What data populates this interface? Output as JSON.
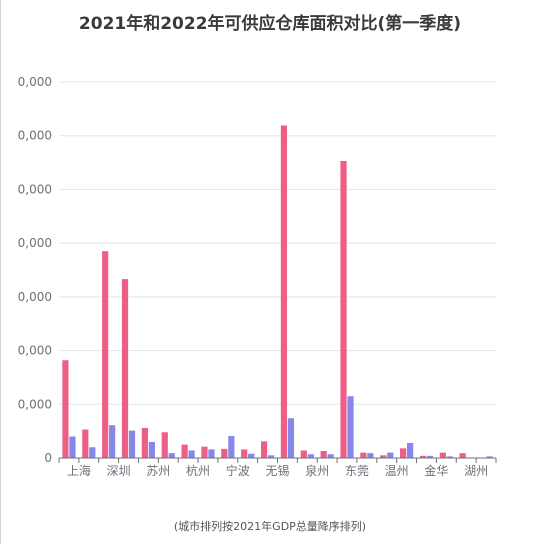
{
  "title": "2021年和2022年可供应仓库面积对比(第一季度)",
  "footnote": "(城市排列按2021年GDP总量降序排列)",
  "colors": {
    "series_2021": "#ec6088",
    "series_2022": "#8687ea",
    "grid": "#e0e6f1",
    "axis": "#6e7079"
  },
  "chart_data": {
    "type": "bar",
    "title": "2021年和2022年可供应仓库面积对比(第一季度)",
    "xlabel": "",
    "ylabel": "",
    "ylim": [
      0,
      70
    ],
    "yticks": [
      0,
      10,
      20,
      30,
      40,
      50,
      60,
      70
    ],
    "ytick_labels": [
      "0",
      "0,000",
      "0,000",
      "0,000",
      "0,000",
      "0,000",
      "0,000",
      "0,000"
    ],
    "grid": true,
    "categories": [
      "上海",
      "",
      "深圳",
      "",
      "苏州",
      "",
      "杭州",
      "",
      "宁波",
      "",
      "无锡",
      "",
      "泉州",
      "",
      "东莞",
      "",
      "温州",
      "",
      "金华",
      "",
      "湖州",
      ""
    ],
    "series": [
      {
        "values": [
          18.2,
          5.3,
          38.5,
          33.3,
          5.6,
          4.8,
          2.5,
          2.1,
          1.7,
          1.6,
          3.1,
          61.9,
          1.4,
          1.3,
          55.3,
          1.0,
          0.5,
          1.8,
          0.4,
          1.0,
          0.9,
          0.0
        ]
      },
      {
        "values": [
          4.0,
          2.0,
          6.1,
          5.1,
          3.0,
          0.9,
          1.4,
          1.6,
          4.1,
          0.8,
          0.5,
          7.4,
          0.7,
          0.7,
          11.5,
          0.9,
          1.0,
          2.8,
          0.4,
          0.3,
          0.0,
          0.3
        ]
      }
    ]
  }
}
